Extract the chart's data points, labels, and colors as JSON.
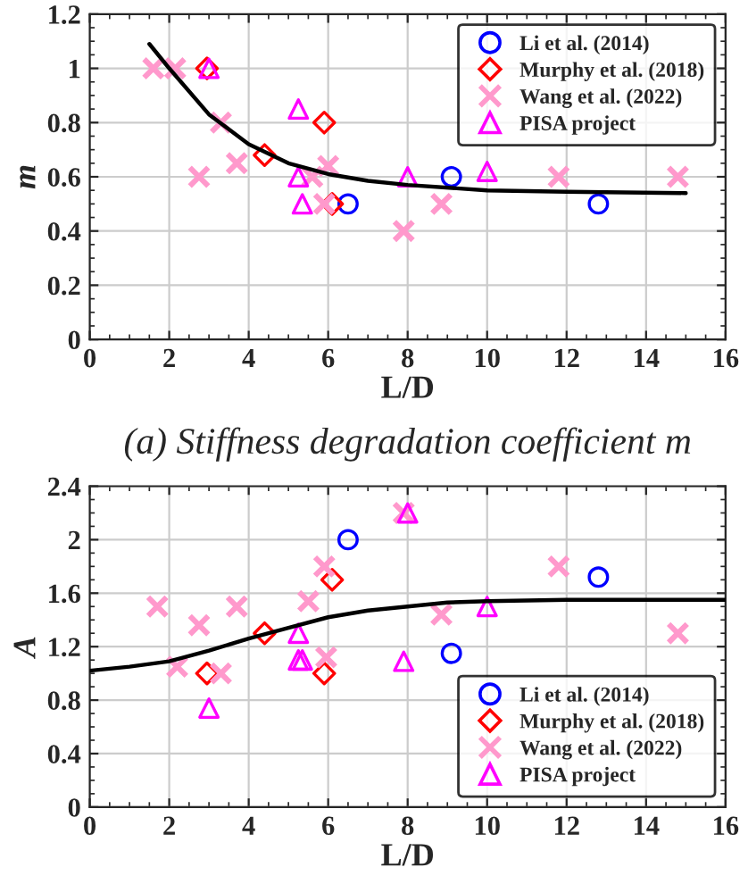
{
  "chart_data": [
    {
      "type": "scatter",
      "xlabel": "L/D",
      "ylabel": "m",
      "xlim": [
        0,
        16
      ],
      "ylim": [
        0,
        1.2
      ],
      "xticks": [
        0,
        2,
        4,
        6,
        8,
        10,
        12,
        14,
        16
      ],
      "yticks": [
        0,
        0.2,
        0.4,
        0.6,
        0.8,
        1,
        1.2
      ],
      "grid": true,
      "legend": "top right",
      "annotations": [
        "(a) Stiffness degradation coefficient m"
      ],
      "series": [
        {
          "name": "Li et al. (2014)",
          "color": "#0000ff",
          "marker": "circle",
          "x": [
            6.5,
            9.1,
            12.8
          ],
          "values": [
            0.5,
            0.6,
            0.5
          ]
        },
        {
          "name": "Murphy et al. (2018)",
          "color": "#ff0000",
          "marker": "diamond",
          "x": [
            2.95,
            4.4,
            5.9,
            6.1
          ],
          "values": [
            1.0,
            0.68,
            0.8,
            0.5
          ]
        },
        {
          "name": "Wang et al. (2022)",
          "color": "#ff99cc",
          "marker": "cross",
          "x": [
            1.6,
            2.15,
            2.75,
            3.3,
            3.7,
            5.6,
            5.9,
            6.0,
            7.9,
            8.85,
            11.8,
            14.8
          ],
          "values": [
            1.0,
            1.0,
            0.6,
            0.8,
            0.65,
            0.6,
            0.5,
            0.64,
            0.4,
            0.5,
            0.6,
            0.6
          ]
        },
        {
          "name": "PISA project",
          "color": "#ff00ff",
          "marker": "triangle",
          "x": [
            3.0,
            5.25,
            5.25,
            5.35,
            8.0,
            10.0
          ],
          "values": [
            1.0,
            0.85,
            0.6,
            0.5,
            0.6,
            0.62
          ]
        },
        {
          "type": "line",
          "color": "#000000",
          "marker": "none",
          "x": [
            1.5,
            2,
            3,
            4,
            5,
            6,
            7,
            8,
            10,
            12,
            15
          ],
          "values": [
            1.09,
            1.0,
            0.83,
            0.72,
            0.65,
            0.61,
            0.585,
            0.57,
            0.55,
            0.545,
            0.54
          ]
        }
      ]
    },
    {
      "type": "scatter",
      "xlabel": "L/D",
      "ylabel": "A",
      "xlim": [
        0,
        16
      ],
      "ylim": [
        0,
        2.4
      ],
      "xticks": [
        0,
        2,
        4,
        6,
        8,
        10,
        12,
        14,
        16
      ],
      "yticks": [
        0,
        0.4,
        0.8,
        1.2,
        1.6,
        2,
        2.4
      ],
      "grid": true,
      "legend": "bottom right",
      "series": [
        {
          "name": "Li et al. (2014)",
          "color": "#0000ff",
          "marker": "circle",
          "x": [
            6.5,
            9.1,
            12.8
          ],
          "values": [
            2.0,
            1.15,
            1.72
          ]
        },
        {
          "name": "Murphy et al. (2018)",
          "color": "#ff0000",
          "marker": "diamond",
          "x": [
            2.95,
            4.4,
            5.9,
            6.1
          ],
          "values": [
            1.0,
            1.3,
            1.0,
            1.7
          ]
        },
        {
          "name": "Wang et al. (2022)",
          "color": "#ff99cc",
          "marker": "cross",
          "x": [
            1.7,
            2.2,
            2.75,
            3.3,
            3.7,
            5.5,
            5.9,
            5.95,
            7.9,
            8.85,
            11.8,
            14.8
          ],
          "values": [
            1.5,
            1.05,
            1.36,
            1.0,
            1.5,
            1.54,
            1.8,
            1.12,
            2.2,
            1.44,
            1.8,
            1.3
          ]
        },
        {
          "name": "PISA project",
          "color": "#ff00ff",
          "marker": "triangle",
          "x": [
            3.0,
            5.25,
            5.25,
            5.35,
            7.9,
            8.0,
            10.0
          ],
          "values": [
            0.74,
            1.3,
            1.1,
            1.1,
            1.09,
            2.2,
            1.5
          ]
        },
        {
          "type": "line",
          "color": "#000000",
          "marker": "none",
          "x": [
            0,
            1,
            2,
            3,
            4,
            5,
            6,
            7,
            8,
            9,
            10,
            12,
            16
          ],
          "values": [
            1.02,
            1.05,
            1.09,
            1.17,
            1.26,
            1.34,
            1.42,
            1.47,
            1.5,
            1.53,
            1.54,
            1.55,
            1.55
          ]
        }
      ]
    }
  ]
}
